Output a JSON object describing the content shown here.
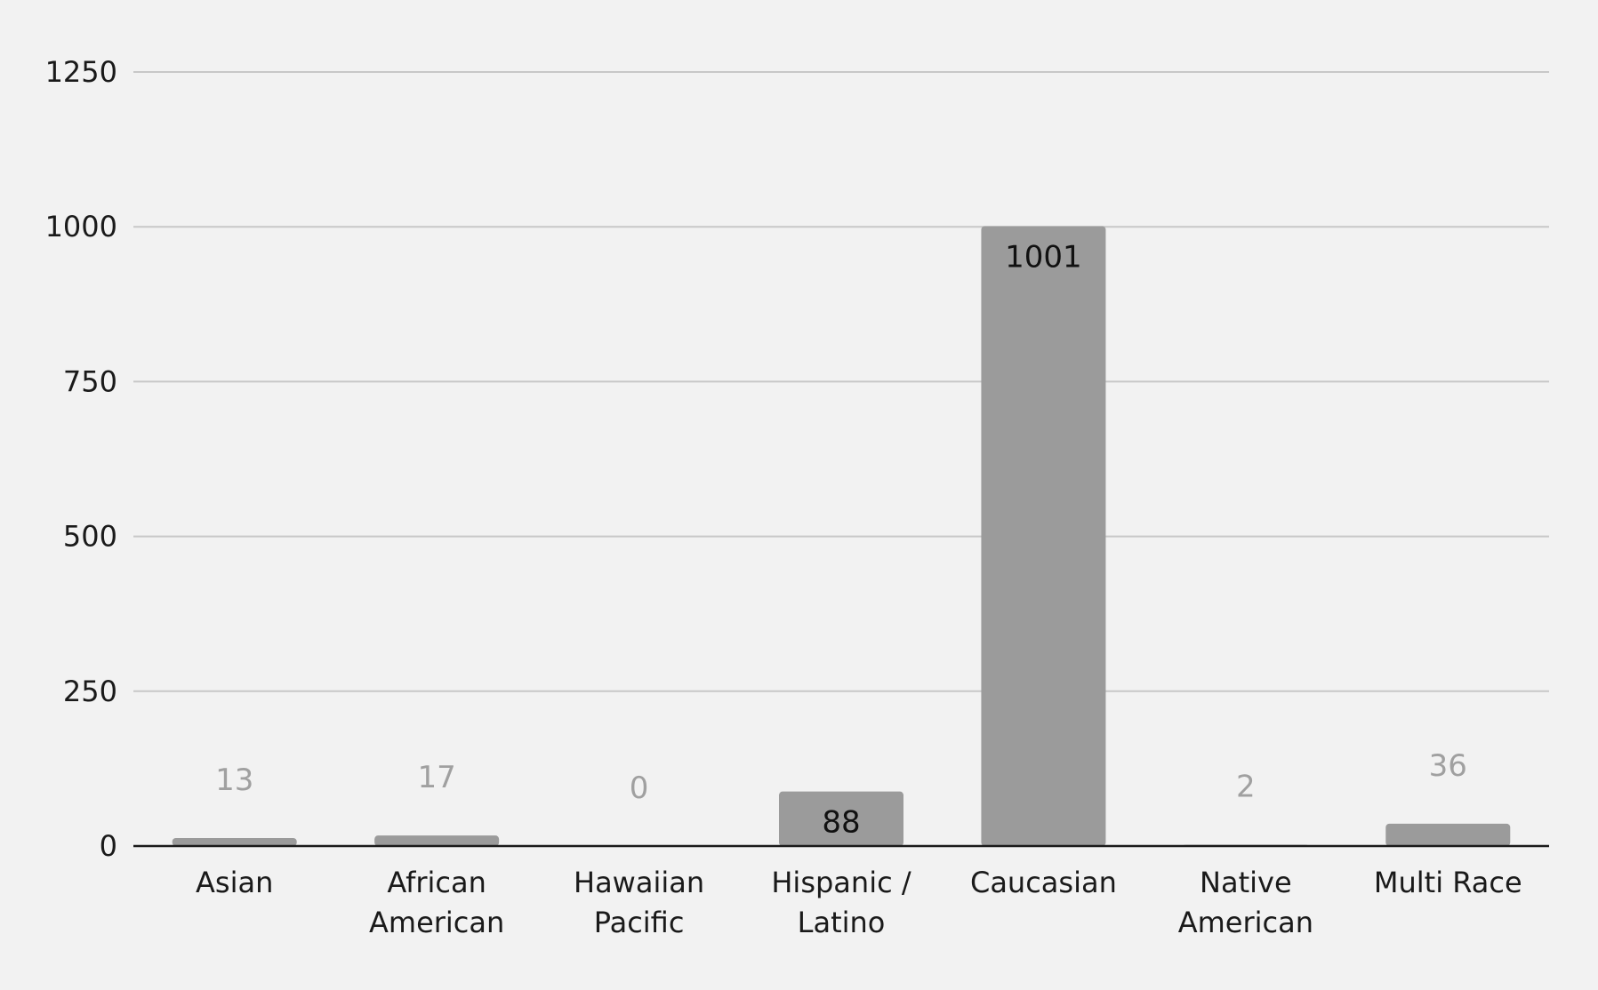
{
  "chart_data": {
    "type": "bar",
    "title": "",
    "xlabel": "",
    "ylabel": "",
    "categories": [
      [
        "Asian"
      ],
      [
        "African",
        "American"
      ],
      [
        "Hawaiian",
        "Pacific"
      ],
      [
        "Hispanic /",
        "Latino"
      ],
      [
        "Caucasian"
      ],
      [
        "Native",
        "American"
      ],
      [
        "Multi Race"
      ]
    ],
    "values": [
      13,
      17,
      0,
      88,
      1001,
      2,
      36
    ],
    "ylim": [
      0,
      1250
    ],
    "yticks": [
      0,
      250,
      500,
      750,
      1000,
      1250
    ],
    "grid": true,
    "legend": "none",
    "data_labels": true,
    "colors": {
      "bar": "#9b9b9b",
      "label_inside": "#111111",
      "label_outside": "#a0a0a0",
      "grid": "#c8c8c8",
      "axis": "#1a1a1a",
      "background": "#f2f2f2"
    }
  }
}
